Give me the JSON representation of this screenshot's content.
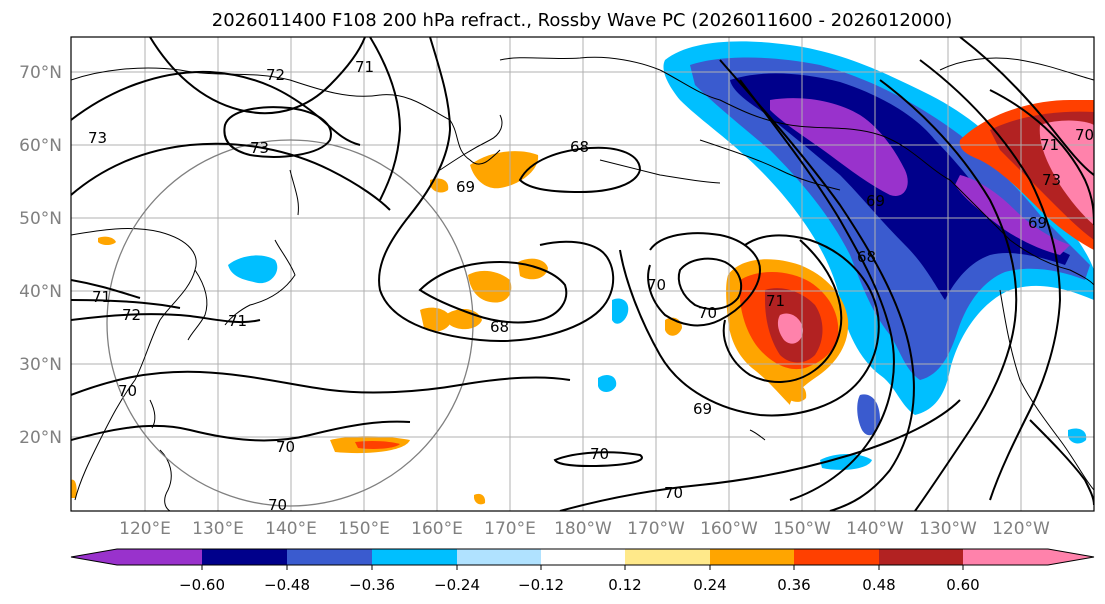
{
  "title": "2026011400 F108 200 hPa refract., Rossby Wave PC (2026011600 - 2026012000)",
  "lat_labels": [
    "70°N",
    "60°N",
    "50°N",
    "40°N",
    "30°N",
    "20°N"
  ],
  "lon_labels": [
    "120°E",
    "130°E",
    "140°E",
    "150°E",
    "160°E",
    "170°E",
    "180°W",
    "170°W",
    "160°W",
    "150°W",
    "140°W",
    "130°W",
    "120°W"
  ],
  "colorbar": {
    "labels": [
      "−0.60",
      "−0.48",
      "−0.36",
      "−0.24",
      "−0.12",
      "0.12",
      "0.24",
      "0.36",
      "0.48",
      "0.60"
    ],
    "colors": [
      "#9932cc",
      "#00008b",
      "#3a5bcf",
      "#00bfff",
      "#b0e2ff",
      "#ffffff",
      "#ffe98a",
      "#ffa500",
      "#ff4000",
      "#b22222",
      "#ff82ab"
    ]
  },
  "contour_labels": [
    "73",
    "72",
    "71",
    "73",
    "68",
    "69",
    "68",
    "70",
    "71",
    "72",
    "71",
    "70",
    "70",
    "70",
    "69",
    "70",
    "70",
    "70",
    "71",
    "69",
    "68",
    "69",
    "71",
    "73",
    "70"
  ],
  "colors": {
    "contour": "#000000",
    "coast": "#000000",
    "grid": "#b0b0b0",
    "circle": "#808080",
    "axis_text": "#808080"
  }
}
